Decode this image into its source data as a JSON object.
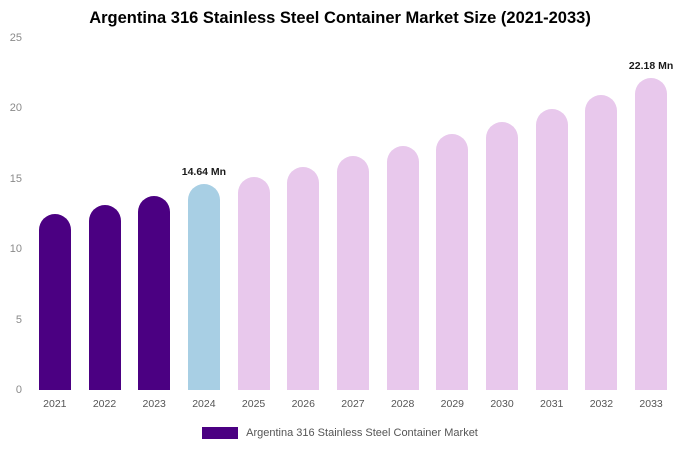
{
  "title": "Argentina 316 Stainless Steel Container Market Size (2021-2033)",
  "legend": {
    "label": "Argentina 316 Stainless Steel Container Market",
    "swatch_color": "#4B0082"
  },
  "colors": {
    "historical_bar": "#4B0082",
    "current_year_bar": "#A8CFE4",
    "forecast_bar": "#E8C8EC",
    "title_text": "#000000",
    "axis_tick_text": "#8a8a8a",
    "x_tick_text": "#555555",
    "background": "#ffffff"
  },
  "chart_data": {
    "type": "bar",
    "title": "Argentina 316 Stainless Steel Container Market Size (2021-2033)",
    "categories": [
      "2021",
      "2022",
      "2023",
      "2024",
      "2025",
      "2026",
      "2027",
      "2028",
      "2029",
      "2030",
      "2031",
      "2032",
      "2033"
    ],
    "values": [
      12.5,
      13.15,
      13.8,
      14.64,
      15.15,
      15.85,
      16.6,
      17.35,
      18.2,
      19.0,
      19.95,
      20.95,
      22.18
    ],
    "unit": "Mn",
    "bar_colors": [
      "#4B0082",
      "#4B0082",
      "#4B0082",
      "#A8CFE4",
      "#E8C8EC",
      "#E8C8EC",
      "#E8C8EC",
      "#E8C8EC",
      "#E8C8EC",
      "#E8C8EC",
      "#E8C8EC",
      "#E8C8EC",
      "#E8C8EC"
    ],
    "annotations": [
      {
        "index": 3,
        "text": "14.64 Mn"
      },
      {
        "index": 12,
        "text": "22.18 Mn"
      }
    ],
    "xlabel": "",
    "ylabel": "",
    "ylim": [
      0,
      25
    ],
    "yticks": [
      0,
      5,
      10,
      15,
      20,
      25
    ],
    "grid": false,
    "legend_position": "bottom-center",
    "legend_entries": [
      "Argentina 316 Stainless Steel Container Market"
    ]
  }
}
